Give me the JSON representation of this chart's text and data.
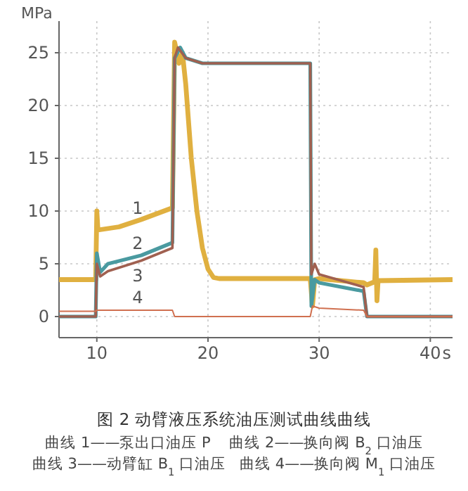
{
  "chart_data": {
    "type": "line",
    "title": "图 2  动臂液压系统油压测试曲线曲线",
    "xlabel": "s",
    "ylabel": "MPa",
    "xlim": [
      6.6,
      42
    ],
    "ylim": [
      -2,
      28
    ],
    "xticks": [
      10,
      20,
      30,
      40
    ],
    "yticks": [
      0,
      5,
      10,
      15,
      20,
      25
    ],
    "grid": true,
    "line_style": "solid",
    "marker": "none",
    "series": [
      {
        "name": "1",
        "color": "#e0b040",
        "x": [
          6.6,
          9.9,
          10,
          10.1,
          12,
          14,
          16.8,
          17,
          17.4,
          17.7,
          18,
          18.5,
          19,
          19.5,
          20,
          20.5,
          21,
          29.2,
          29.4,
          29.6,
          30,
          34,
          34.3,
          35,
          35.1,
          35.2,
          35.3,
          42
        ],
        "values": [
          3.5,
          3.5,
          10,
          8.2,
          8.5,
          9.2,
          10.3,
          26,
          24,
          25,
          22,
          15,
          10,
          6.5,
          4.5,
          3.7,
          3.6,
          3.6,
          1,
          3.5,
          3.6,
          3.2,
          3,
          3.3,
          6.3,
          1.5,
          3.4,
          3.5
        ]
      },
      {
        "name": "2",
        "color": "#4a9aa0",
        "x": [
          6.6,
          9.9,
          10,
          10.3,
          11,
          14,
          16.8,
          17,
          17.5,
          18,
          19.5,
          29.2,
          29.3,
          29.6,
          30,
          34,
          34.3,
          42
        ],
        "values": [
          0,
          0,
          6,
          4.2,
          5,
          5.8,
          7,
          24.5,
          25.5,
          24.5,
          24,
          24,
          1,
          3.5,
          3.2,
          2.4,
          0,
          0
        ]
      },
      {
        "name": "3",
        "color": "#a06050",
        "x": [
          6.6,
          9.9,
          10,
          10.3,
          11,
          14,
          16.8,
          17,
          17.3,
          18,
          19.5,
          29.2,
          29.3,
          29.6,
          30,
          34,
          34.3,
          42
        ],
        "values": [
          0,
          0,
          5,
          3.8,
          4.3,
          5.3,
          6.5,
          24.5,
          25.5,
          24.5,
          24,
          24,
          4,
          5,
          4,
          2.8,
          0,
          0
        ]
      },
      {
        "name": "4",
        "color": "#d07050",
        "x": [
          6.6,
          9.9,
          10,
          16.8,
          17,
          29.2,
          29.4,
          30,
          34,
          34.3,
          42
        ],
        "values": [
          0.5,
          0.5,
          0.6,
          0.6,
          0,
          0,
          1,
          0.8,
          0.6,
          0,
          0
        ]
      }
    ],
    "annotations": [
      "曲线 1——泵出口油压 P    曲线 2——换向阀 B$_{2}$ 口油压",
      "曲线 3——动臂缸 B$_{1}$ 口油压   曲线 4——换向阀 M$_{1}$ 口油压"
    ]
  }
}
